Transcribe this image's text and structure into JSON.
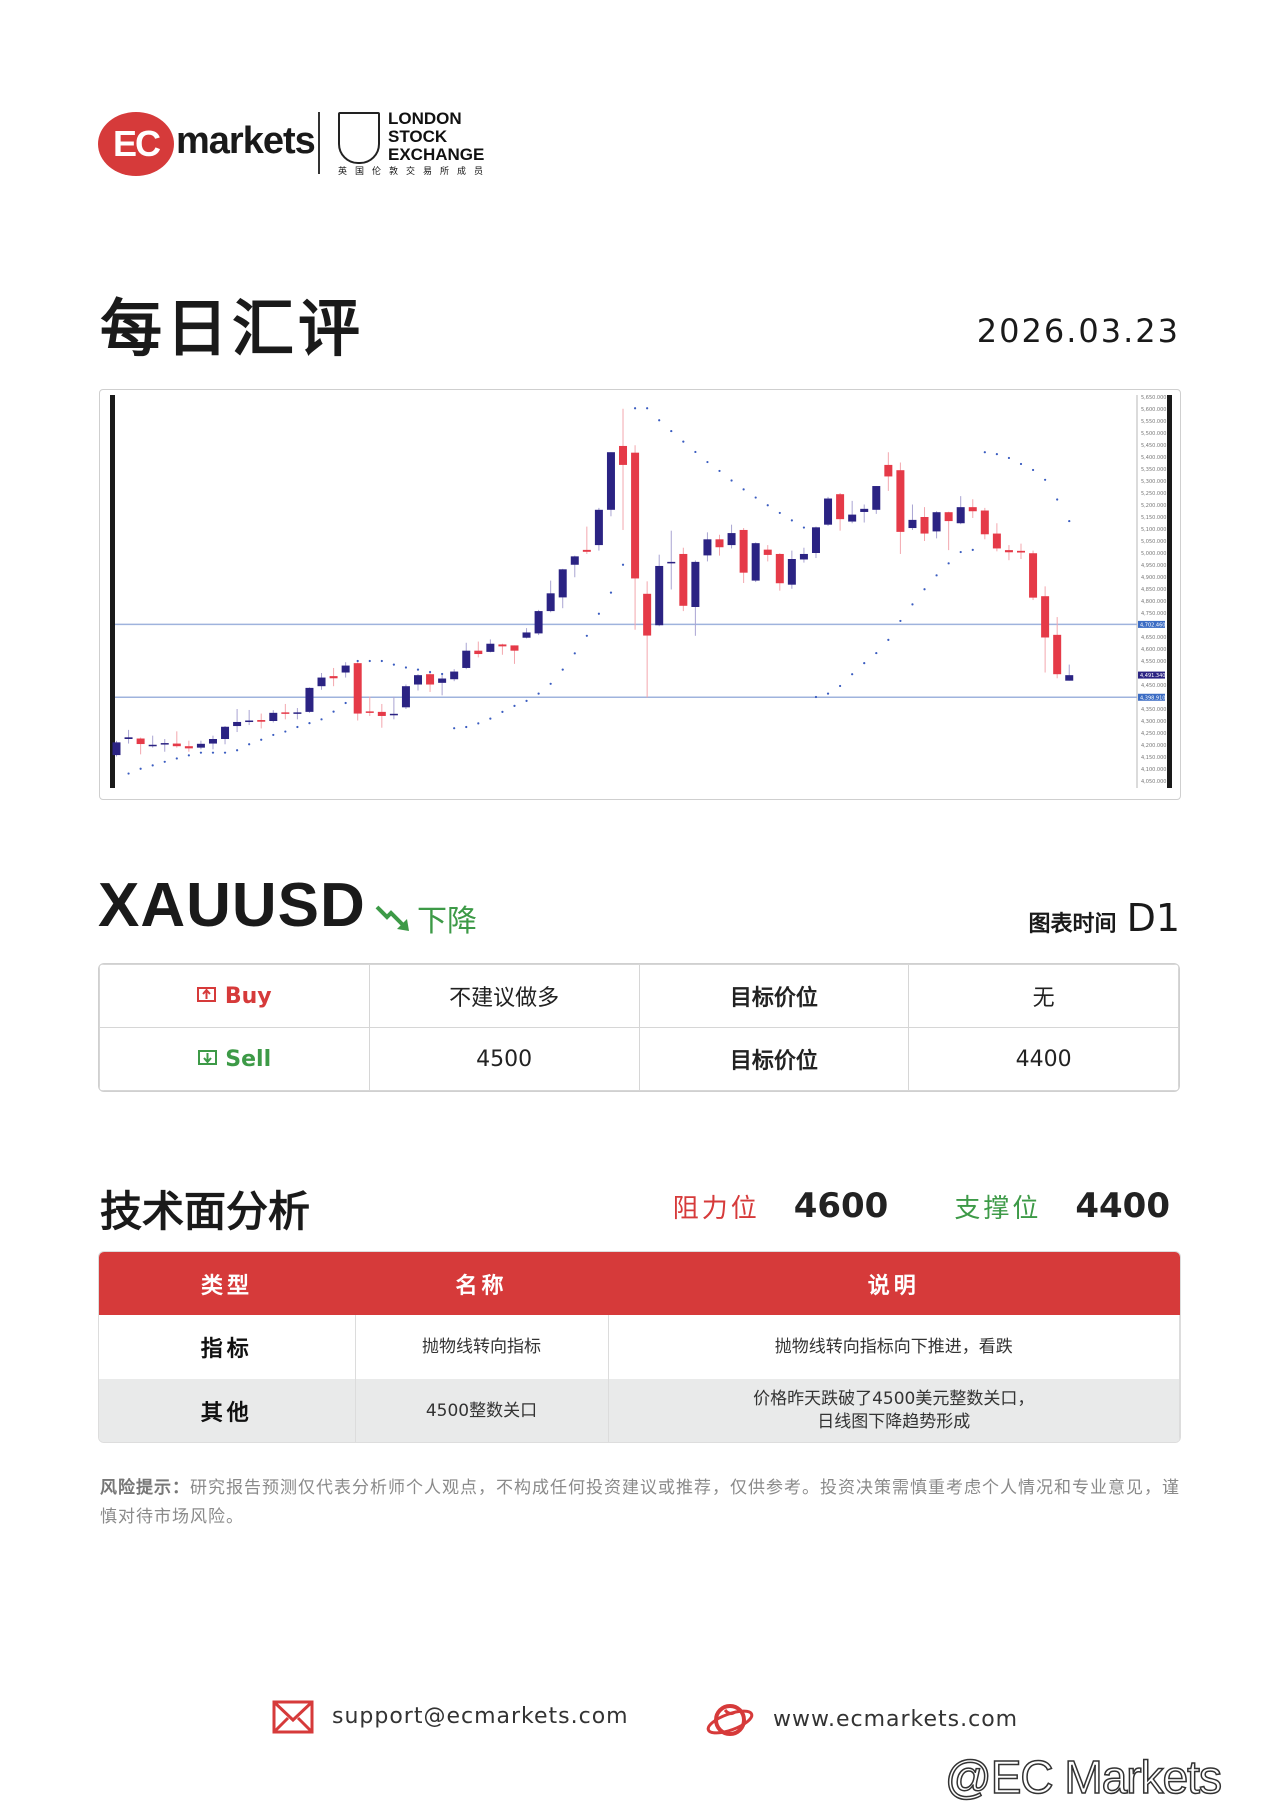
{
  "brand": {
    "logo_text": "EC markets",
    "exchange_text": [
      "LONDON",
      "STOCK",
      "EXCHANGE"
    ],
    "exchange_cn": "英国伦敦交易所成员",
    "accent": "#d63a3a",
    "green": "#3d9a47"
  },
  "header": {
    "title": "每日汇评",
    "date": "2026.03.23"
  },
  "instrument": {
    "symbol": "XAUUSD",
    "trend": "下降",
    "trend_icon": "trend-down-arrow-icon",
    "timeframe_label": "图表时间",
    "timeframe": "D1"
  },
  "trade": {
    "rows": [
      {
        "side": "Buy",
        "icon": "buy-box-icon",
        "entry": "不建议做多",
        "target_label": "目标价位",
        "target": "无"
      },
      {
        "side": "Sell",
        "icon": "sell-box-icon",
        "entry": "4500",
        "target_label": "目标价位",
        "target": "4400"
      }
    ]
  },
  "technical": {
    "title": "技术面分析",
    "resistance_label": "阻力位",
    "resistance": "4600",
    "support_label": "支撑位",
    "support": "4400",
    "columns": [
      "类型",
      "名称",
      "说明"
    ],
    "rows": [
      {
        "type": "指标",
        "name": "抛物线转向指标",
        "desc": [
          "抛物线转向指标向下推进，看跌"
        ]
      },
      {
        "type": "其他",
        "name": "4500整数关口",
        "desc": [
          "价格昨天跌破了4500美元整数关口，",
          "日线图下降趋势形成"
        ]
      }
    ]
  },
  "disclaimer": {
    "label": "风险提示：",
    "text": "研究报告预测仅代表分析师个人观点，不构成任何投资建议或推荐，仅供参考。投资决策需慎重考虑个人情况和专业意见，谨慎对待市场风险。"
  },
  "footer": {
    "email": "support@ecmarkets.com",
    "website": "www.ecmarkets.com",
    "watermark": "@EC Markets"
  },
  "chart_data": {
    "type": "candlestick",
    "indicator": "parabolic-sar",
    "ylim": [
      4050,
      5650
    ],
    "ytick_step": 50,
    "colors": {
      "up": "#2b2383",
      "down": "#e53a48",
      "sar": "#3a5cc0",
      "hline": "#9fb3dd"
    },
    "hlines": [
      {
        "value": 4702.46,
        "label": "4,702.460"
      },
      {
        "value": 4398.9,
        "label": "4,398.910"
      }
    ],
    "last_price": {
      "value": 4491.34,
      "label": "4,491.340"
    },
    "ohlc": [
      [
        4158,
        4217,
        4152,
        4211
      ],
      [
        4225,
        4263,
        4206,
        4232
      ],
      [
        4227,
        4231,
        4161,
        4204
      ],
      [
        4200,
        4239,
        4189,
        4201
      ],
      [
        4205,
        4225,
        4172,
        4208
      ],
      [
        4206,
        4257,
        4189,
        4195
      ],
      [
        4195,
        4218,
        4172,
        4186
      ],
      [
        4189,
        4218,
        4182,
        4205
      ],
      [
        4206,
        4239,
        4182,
        4225
      ],
      [
        4225,
        4279,
        4203,
        4276
      ],
      [
        4279,
        4350,
        4254,
        4296
      ],
      [
        4299,
        4346,
        4283,
        4302
      ],
      [
        4304,
        4331,
        4269,
        4297
      ],
      [
        4300,
        4345,
        4294,
        4334
      ],
      [
        4336,
        4371,
        4307,
        4330
      ],
      [
        4333,
        4354,
        4307,
        4336
      ],
      [
        4338,
        4440,
        4334,
        4438
      ],
      [
        4445,
        4500,
        4430,
        4481
      ],
      [
        4487,
        4521,
        4445,
        4478
      ],
      [
        4502,
        4545,
        4481,
        4531
      ],
      [
        4541,
        4545,
        4302,
        4331
      ],
      [
        4340,
        4402,
        4321,
        4335
      ],
      [
        4338,
        4371,
        4272,
        4321
      ],
      [
        4326,
        4402,
        4307,
        4330
      ],
      [
        4357,
        4452,
        4350,
        4445
      ],
      [
        4452,
        4495,
        4427,
        4491
      ],
      [
        4495,
        4509,
        4421,
        4452
      ],
      [
        4459,
        4495,
        4407,
        4477
      ],
      [
        4474,
        4516,
        4466,
        4506
      ],
      [
        4521,
        4626,
        4516,
        4593
      ],
      [
        4593,
        4631,
        4565,
        4579
      ],
      [
        4588,
        4640,
        4586,
        4622
      ],
      [
        4619,
        4622,
        4576,
        4611
      ],
      [
        4615,
        4615,
        4538,
        4593
      ],
      [
        4647,
        4687,
        4644,
        4669
      ],
      [
        4665,
        4763,
        4658,
        4758
      ],
      [
        4758,
        4885,
        4753,
        4832
      ],
      [
        4815,
        4934,
        4770,
        4932
      ],
      [
        4951,
        4989,
        4899,
        4986
      ],
      [
        5013,
        5110,
        4996,
        5005
      ],
      [
        5033,
        5188,
        5010,
        5180
      ],
      [
        5180,
        5420,
        5153,
        5420
      ],
      [
        5446,
        5601,
        5096,
        5367
      ],
      [
        5418,
        5449,
        4680,
        4894
      ],
      [
        4830,
        4882,
        4398,
        4656
      ],
      [
        4699,
        4993,
        4695,
        4946
      ],
      [
        4959,
        5093,
        4848,
        4963
      ],
      [
        4996,
        5022,
        4758,
        4780
      ],
      [
        4775,
        4969,
        4655,
        4963
      ],
      [
        4990,
        5086,
        4965,
        5057
      ],
      [
        5057,
        5076,
        4989,
        5024
      ],
      [
        5033,
        5118,
        5019,
        5083
      ],
      [
        5096,
        5104,
        4875,
        4918
      ],
      [
        4885,
        5044,
        4879,
        5041
      ],
      [
        5014,
        5033,
        4965,
        4992
      ],
      [
        4996,
        4999,
        4843,
        4874
      ],
      [
        4868,
        5010,
        4851,
        4975
      ],
      [
        4973,
        5022,
        4960,
        4996
      ],
      [
        5000,
        5110,
        4979,
        5107
      ],
      [
        5118,
        5234,
        5113,
        5227
      ],
      [
        5245,
        5250,
        5093,
        5141
      ],
      [
        5131,
        5217,
        5124,
        5160
      ],
      [
        5171,
        5202,
        5127,
        5184
      ],
      [
        5180,
        5279,
        5163,
        5279
      ],
      [
        5367,
        5420,
        5259,
        5319
      ],
      [
        5345,
        5377,
        4996,
        5088
      ],
      [
        5104,
        5202,
        5096,
        5138
      ],
      [
        5150,
        5191,
        5050,
        5081
      ],
      [
        5090,
        5174,
        5061,
        5170
      ],
      [
        5170,
        5172,
        5012,
        5133
      ],
      [
        5124,
        5237,
        5120,
        5191
      ],
      [
        5191,
        5224,
        5146,
        5174
      ],
      [
        5177,
        5188,
        5057,
        5078
      ],
      [
        5081,
        5124,
        5007,
        5019
      ],
      [
        5012,
        5033,
        4970,
        5003
      ],
      [
        5009,
        5039,
        4975,
        5002
      ],
      [
        4999,
        5010,
        4804,
        4814
      ],
      [
        4820,
        4861,
        4502,
        4648
      ],
      [
        4659,
        4733,
        4478,
        4495
      ],
      [
        4468,
        4535,
        4468,
        4491
      ]
    ],
    "sar": [
      null,
      4081,
      4101,
      4115,
      4130,
      4144,
      4157,
      4168,
      4168,
      4168,
      4178,
      4203,
      4222,
      4242,
      4256,
      4275,
      4291,
      4307,
      4339,
      4375,
      4550,
      4550,
      4550,
      4535,
      4523,
      4514,
      4504,
      4496,
      4270,
      4275,
      4290,
      4310,
      4338,
      4363,
      4384,
      4414,
      4455,
      4514,
      4582,
      4655,
      4747,
      4835,
      4951,
      5603,
      5603,
      5553,
      5508,
      5464,
      5421,
      5379,
      5342,
      5302,
      5265,
      5231,
      5199,
      5167,
      5136,
      5106,
      4400,
      4414,
      4446,
      4495,
      4541,
      4583,
      4638,
      4717,
      4786,
      4849,
      4907,
      4957,
      5004,
      5013,
      5420,
      5412,
      5396,
      5371,
      5346,
      5305,
      5223,
      5133
    ]
  }
}
